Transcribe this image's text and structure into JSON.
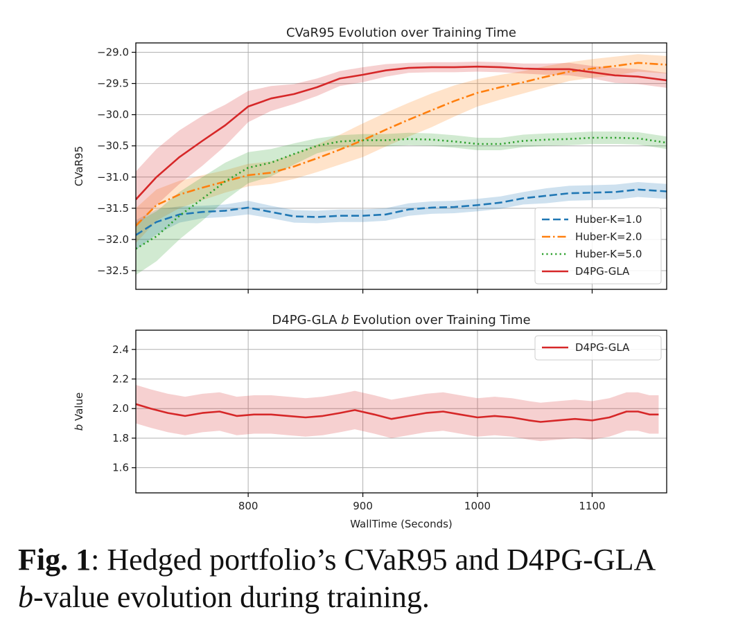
{
  "chart_data": [
    {
      "type": "line",
      "title": "CVaR95 Evolution over Training Time",
      "xlabel": "",
      "ylabel": "CVaR95",
      "xlim": [
        702,
        1165
      ],
      "ylim": [
        -32.8,
        -28.85
      ],
      "xticks": [
        800,
        900,
        1000,
        1100
      ],
      "yticks": [
        -29.0,
        -29.5,
        -30.0,
        -30.5,
        -31.0,
        -31.5,
        -32.0,
        -32.5
      ],
      "ytick_labels": [
        "−29.0",
        "−29.5",
        "−30.0",
        "−30.5",
        "−31.0",
        "−31.5",
        "−32.0",
        "−32.5"
      ],
      "grid": true,
      "legend": "lower-right",
      "series": [
        {
          "name": "Huber-K=1.0",
          "color": "#1f77b4",
          "style": "dashed",
          "x": [
            702,
            720,
            740,
            760,
            780,
            800,
            820,
            840,
            860,
            880,
            900,
            920,
            940,
            960,
            980,
            1000,
            1020,
            1040,
            1060,
            1080,
            1100,
            1120,
            1140,
            1165
          ],
          "y": [
            -31.93,
            -31.72,
            -31.6,
            -31.56,
            -31.54,
            -31.49,
            -31.56,
            -31.63,
            -31.64,
            -31.62,
            -31.62,
            -31.6,
            -31.52,
            -31.49,
            -31.48,
            -31.45,
            -31.41,
            -31.34,
            -31.3,
            -31.26,
            -31.25,
            -31.24,
            -31.2,
            -31.23
          ],
          "band": [
            0.24,
            0.2,
            0.13,
            0.1,
            0.1,
            0.11,
            0.1,
            0.1,
            0.1,
            0.1,
            0.1,
            0.1,
            0.1,
            0.1,
            0.1,
            0.1,
            0.1,
            0.1,
            0.12,
            0.12,
            0.12,
            0.12,
            0.12,
            0.12
          ]
        },
        {
          "name": "Huber-K=2.0",
          "color": "#ff7f0e",
          "style": "dashdot",
          "x": [
            702,
            720,
            740,
            760,
            780,
            800,
            820,
            840,
            860,
            880,
            900,
            920,
            940,
            960,
            980,
            1000,
            1020,
            1040,
            1060,
            1080,
            1100,
            1120,
            1140,
            1165
          ],
          "y": [
            -31.78,
            -31.45,
            -31.28,
            -31.17,
            -31.07,
            -30.97,
            -30.93,
            -30.83,
            -30.7,
            -30.56,
            -30.41,
            -30.24,
            -30.08,
            -29.93,
            -29.78,
            -29.65,
            -29.56,
            -29.48,
            -29.39,
            -29.31,
            -29.26,
            -29.22,
            -29.17,
            -29.2
          ],
          "band": [
            0.28,
            0.25,
            0.22,
            0.2,
            0.18,
            0.18,
            0.18,
            0.2,
            0.22,
            0.24,
            0.27,
            0.27,
            0.27,
            0.27,
            0.25,
            0.22,
            0.2,
            0.18,
            0.17,
            0.15,
            0.15,
            0.15,
            0.14,
            0.14
          ]
        },
        {
          "name": "Huber-K=5.0",
          "color": "#2ca02c",
          "style": "dotted",
          "x": [
            702,
            720,
            740,
            760,
            780,
            800,
            820,
            840,
            860,
            880,
            900,
            920,
            940,
            960,
            980,
            1000,
            1020,
            1040,
            1060,
            1080,
            1100,
            1120,
            1140,
            1165
          ],
          "y": [
            -32.15,
            -31.95,
            -31.62,
            -31.35,
            -31.07,
            -30.85,
            -30.77,
            -30.63,
            -30.5,
            -30.43,
            -30.41,
            -30.41,
            -30.39,
            -30.4,
            -30.43,
            -30.47,
            -30.47,
            -30.42,
            -30.4,
            -30.39,
            -30.37,
            -30.37,
            -30.38,
            -30.45
          ],
          "band": [
            0.42,
            0.4,
            0.38,
            0.35,
            0.3,
            0.25,
            0.22,
            0.17,
            0.12,
            0.1,
            0.1,
            0.1,
            0.1,
            0.1,
            0.1,
            0.1,
            0.1,
            0.1,
            0.1,
            0.1,
            0.1,
            0.1,
            0.1,
            0.1
          ]
        },
        {
          "name": "D4PG-GLA",
          "color": "#d62728",
          "style": "solid",
          "x": [
            702,
            720,
            740,
            760,
            780,
            800,
            820,
            840,
            860,
            880,
            900,
            920,
            940,
            960,
            980,
            1000,
            1020,
            1040,
            1060,
            1080,
            1100,
            1120,
            1140,
            1165
          ],
          "y": [
            -31.36,
            -31.0,
            -30.68,
            -30.42,
            -30.17,
            -29.87,
            -29.74,
            -29.67,
            -29.56,
            -29.42,
            -29.36,
            -29.29,
            -29.25,
            -29.24,
            -29.24,
            -29.23,
            -29.24,
            -29.26,
            -29.27,
            -29.27,
            -29.32,
            -29.37,
            -29.39,
            -29.45
          ],
          "band": [
            0.45,
            0.45,
            0.43,
            0.4,
            0.33,
            0.25,
            0.2,
            0.16,
            0.14,
            0.12,
            0.12,
            0.1,
            0.08,
            0.08,
            0.08,
            0.08,
            0.08,
            0.08,
            0.09,
            0.1,
            0.1,
            0.12,
            0.12,
            0.12
          ]
        }
      ]
    },
    {
      "type": "line",
      "title_parts": [
        "D4PG-GLA ",
        "b",
        " Evolution over Training Time"
      ],
      "xlabel": "WallTime (Seconds)",
      "ylabel_parts": [
        "b",
        " Value"
      ],
      "xlim": [
        702,
        1165
      ],
      "ylim": [
        1.43,
        2.53
      ],
      "xticks": [
        800,
        900,
        1000,
        1100
      ],
      "xtick_labels": [
        "800",
        "900",
        "1000",
        "1100"
      ],
      "yticks": [
        2.4,
        2.2,
        2.0,
        1.8,
        1.6
      ],
      "ytick_labels": [
        "2.4",
        "2.2",
        "2.0",
        "1.8",
        "1.6"
      ],
      "grid": true,
      "legend": "top-right",
      "series": [
        {
          "name": "D4PG-GLA",
          "color": "#d62728",
          "style": "solid",
          "x": [
            702,
            715,
            730,
            745,
            760,
            775,
            790,
            805,
            820,
            835,
            850,
            865,
            880,
            893,
            910,
            925,
            940,
            955,
            970,
            985,
            1000,
            1015,
            1030,
            1045,
            1055,
            1070,
            1085,
            1100,
            1115,
            1130,
            1140,
            1150,
            1158
          ],
          "y": [
            2.03,
            2.0,
            1.97,
            1.95,
            1.97,
            1.98,
            1.95,
            1.96,
            1.96,
            1.95,
            1.94,
            1.95,
            1.97,
            1.99,
            1.96,
            1.93,
            1.95,
            1.97,
            1.98,
            1.96,
            1.94,
            1.95,
            1.94,
            1.92,
            1.91,
            1.92,
            1.93,
            1.92,
            1.94,
            1.98,
            1.98,
            1.96,
            1.96
          ],
          "band": [
            0.13,
            0.13,
            0.13,
            0.13,
            0.13,
            0.13,
            0.13,
            0.13,
            0.13,
            0.13,
            0.13,
            0.13,
            0.13,
            0.13,
            0.13,
            0.13,
            0.13,
            0.13,
            0.13,
            0.13,
            0.13,
            0.13,
            0.13,
            0.13,
            0.13,
            0.13,
            0.13,
            0.13,
            0.13,
            0.13,
            0.13,
            0.13,
            0.13
          ]
        }
      ]
    }
  ],
  "caption": {
    "fig_label": "Fig. 1",
    "line1_rest": ": Hedged portfolio’s CVaR95 and D4PG-GLA",
    "line2_italic": "b",
    "line2_rest": "-value evolution during training."
  }
}
